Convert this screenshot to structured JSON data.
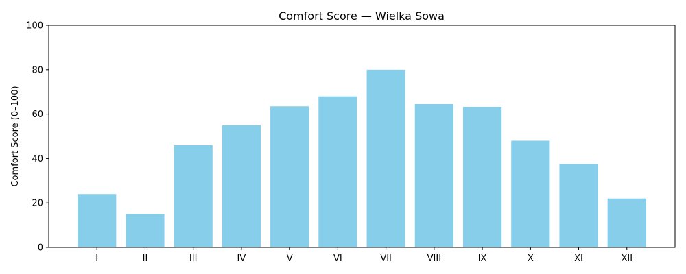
{
  "chart_data": {
    "type": "bar",
    "title": "Comfort Score — Wielka Sowa",
    "xlabel": "",
    "ylabel": "Comfort Score (0–100)",
    "categories": [
      "I",
      "II",
      "III",
      "IV",
      "V",
      "VI",
      "VII",
      "VIII",
      "IX",
      "X",
      "XI",
      "XII"
    ],
    "values": [
      24,
      15,
      46,
      55,
      63.5,
      68,
      80,
      64.5,
      63.3,
      48,
      37.5,
      22
    ],
    "ylim": [
      0,
      100
    ],
    "yticks": [
      0,
      20,
      40,
      60,
      80,
      100
    ],
    "bar_color": "#87ceeb",
    "grid": false,
    "legend": "none"
  }
}
